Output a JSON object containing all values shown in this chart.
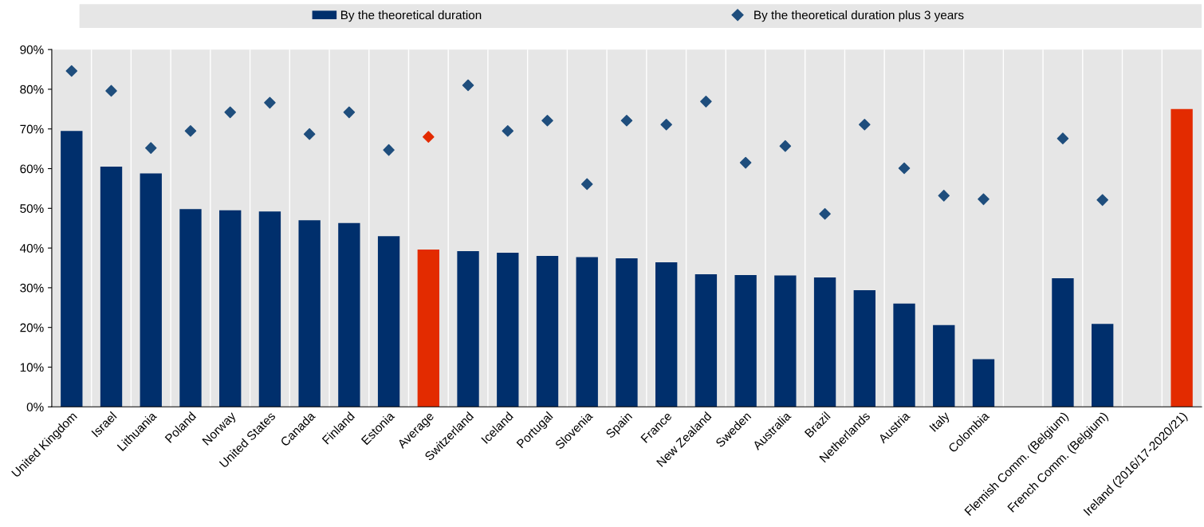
{
  "chart_data": {
    "type": "bar",
    "categories": [
      "United Kingdom",
      "Israel",
      "Lithuania",
      "Poland",
      "Norway",
      "United States",
      "Canada",
      "Finland",
      "Estonia",
      "Average",
      "Switzerland",
      "Iceland",
      "Portugal",
      "Slovenia",
      "Spain",
      "France",
      "New Zealand",
      "Sweden",
      "Australia",
      "Brazil",
      "Netherlands",
      "Austria",
      "Italy",
      "Colombia",
      null,
      "Flemish Comm. (Belgium)",
      "French Comm. (Belgium)",
      null,
      "Ireland (2016/17-2020/21)"
    ],
    "series": [
      {
        "name": "By the theoretical duration",
        "color": "#002f6c",
        "colors": [
          "#002f6c",
          "#002f6c",
          "#002f6c",
          "#002f6c",
          "#002f6c",
          "#002f6c",
          "#002f6c",
          "#002f6c",
          "#002f6c",
          "#e32b00",
          "#002f6c",
          "#002f6c",
          "#002f6c",
          "#002f6c",
          "#002f6c",
          "#002f6c",
          "#002f6c",
          "#002f6c",
          "#002f6c",
          "#002f6c",
          "#002f6c",
          "#002f6c",
          "#002f6c",
          "#002f6c",
          "#002f6c",
          "#002f6c",
          "#002f6c",
          "#002f6c",
          "#e32b00"
        ],
        "values": [
          69.5,
          60.5,
          58.8,
          49.8,
          49.5,
          49.2,
          47,
          46.3,
          43,
          39.6,
          39.2,
          38.8,
          38,
          37.7,
          37.4,
          36.4,
          33.4,
          33.2,
          33.1,
          32.6,
          29.4,
          26,
          20.6,
          12,
          null,
          32.4,
          20.9,
          null,
          75
        ]
      },
      {
        "name": "By the theoretical duration plus 3 years",
        "type": "scatter",
        "marker": "diamond",
        "color": "#1f4e7d",
        "colors": [
          "#1f4e7d",
          "#1f4e7d",
          "#1f4e7d",
          "#1f4e7d",
          "#1f4e7d",
          "#1f4e7d",
          "#1f4e7d",
          "#1f4e7d",
          "#1f4e7d",
          "#e32b00",
          "#1f4e7d",
          "#1f4e7d",
          "#1f4e7d",
          "#1f4e7d",
          "#1f4e7d",
          "#1f4e7d",
          "#1f4e7d",
          "#1f4e7d",
          "#1f4e7d",
          "#1f4e7d",
          "#1f4e7d",
          "#1f4e7d",
          "#1f4e7d",
          "#1f4e7d",
          "#1f4e7d",
          "#1f4e7d",
          "#1f4e7d",
          "#1f4e7d",
          "#1f4e7d"
        ],
        "values": [
          84.6,
          79.6,
          65.2,
          69.5,
          74.2,
          76.6,
          68.7,
          74.2,
          64.7,
          68,
          81,
          69.5,
          72.1,
          56.1,
          72.1,
          71.1,
          76.9,
          61.5,
          65.7,
          48.6,
          71.1,
          60.1,
          53.2,
          52.3,
          null,
          67.6,
          52.1,
          null,
          null
        ]
      }
    ],
    "ylim": [
      0,
      90
    ],
    "yticks": [
      {
        "value": 0,
        "label": "0%"
      },
      {
        "value": 10,
        "label": "10%"
      },
      {
        "value": 20,
        "label": "20%"
      },
      {
        "value": 30,
        "label": "30%"
      },
      {
        "value": 40,
        "label": "40%"
      },
      {
        "value": 50,
        "label": "50%"
      },
      {
        "value": 60,
        "label": "60%"
      },
      {
        "value": 70,
        "label": "70%"
      },
      {
        "value": 80,
        "label": "80%"
      },
      {
        "value": 90,
        "label": "90%"
      }
    ],
    "grid": "x",
    "legend": "top"
  }
}
